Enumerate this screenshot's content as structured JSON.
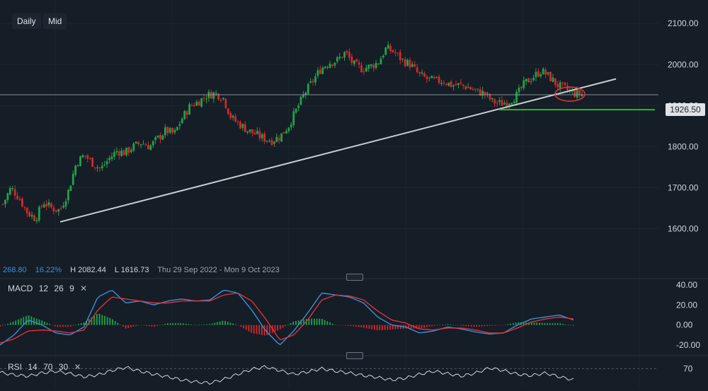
{
  "toolbar": {
    "daily_label": "Daily",
    "mid_label": "Mid"
  },
  "stats": {
    "change": "268.80",
    "change_pct": "16.22%",
    "high": "H 2082.44",
    "low": "L 1616.73",
    "range": "Thu 29 Sep 2022 - Mon 9 Oct 2023"
  },
  "price_tag": "1926.50",
  "macd_label": {
    "name": "MACD",
    "p1": "12",
    "p2": "26",
    "p3": "9",
    "close": "✕"
  },
  "rsi_label": {
    "name": "RSI",
    "p1": "14",
    "p2": "70",
    "p3": "30",
    "close": "✕"
  },
  "colors": {
    "background": "#151d26",
    "up": "#1fa34a",
    "down": "#d7262b",
    "trendline": "#c9cdd2",
    "support": "#1fbf2e",
    "macd_line": "#3a8fd8",
    "signal_line": "#e0323a",
    "highlight": "#e0323a"
  },
  "chart_data": [
    {
      "type": "candlestick",
      "title": "",
      "x_range": [
        "Thu 29 Sep 2022",
        "Mon 9 Oct 2023"
      ],
      "ylim": [
        1520,
        2140
      ],
      "yticks": [
        1600,
        1700,
        1800,
        1900,
        2000,
        2100
      ],
      "ytick_labels": [
        "1600.00",
        "1700.00",
        "1800.00",
        "1900.00",
        "2000.00",
        "2100.00"
      ],
      "last_price": 1926.5,
      "high": 2082.44,
      "low": 1616.73,
      "close_path": [
        1660,
        1700,
        1675,
        1640,
        1625,
        1665,
        1650,
        1645,
        1690,
        1760,
        1780,
        1760,
        1745,
        1770,
        1790,
        1785,
        1800,
        1810,
        1800,
        1820,
        1840,
        1830,
        1870,
        1900,
        1910,
        1925,
        1930,
        1920,
        1870,
        1855,
        1840,
        1830,
        1820,
        1815,
        1825,
        1850,
        1890,
        1930,
        1960,
        1990,
        2005,
        2010,
        2030,
        2000,
        1990,
        1995,
        2005,
        2040,
        2030,
        2010,
        2000,
        1975,
        1965,
        1960,
        1960,
        1950,
        1950,
        1945,
        1935,
        1930,
        1910,
        1905,
        1910,
        1925,
        1955,
        1970,
        1985,
        1970,
        1950,
        1940,
        1930,
        1926.5
      ],
      "trendline": {
        "x": [
          0.085,
          0.87
        ],
        "y": [
          1616.73,
          1965
        ]
      },
      "support_line": {
        "x": [
          0.705,
          0.925
        ],
        "y": [
          1890,
          1890
        ]
      },
      "highlight_ellipse": {
        "x": 0.805,
        "y": 1928
      }
    },
    {
      "type": "line",
      "title": "MACD 12 26 9",
      "ylim": [
        -25,
        45
      ],
      "yticks": [
        40,
        20,
        0,
        -20
      ],
      "ytick_labels": [
        "40.00",
        "20.00",
        "0.00",
        "-20.00"
      ],
      "series": [
        {
          "name": "MACD",
          "values": [
            -20,
            -10,
            5,
            0,
            -8,
            -10,
            -2,
            28,
            35,
            22,
            24,
            20,
            24,
            26,
            24,
            25,
            35,
            32,
            15,
            -6,
            -20,
            -6,
            12,
            32,
            30,
            28,
            22,
            8,
            0,
            -2,
            -8,
            -6,
            -2,
            -4,
            -7,
            -9,
            -8,
            0,
            6,
            8,
            10,
            5
          ]
        },
        {
          "name": "Signal",
          "values": [
            -18,
            -14,
            -6,
            -5,
            -6,
            -8,
            -5,
            15,
            28,
            26,
            24,
            22,
            22,
            24,
            24,
            24,
            30,
            32,
            24,
            6,
            -15,
            -10,
            5,
            25,
            30,
            29,
            25,
            14,
            5,
            2,
            -4,
            -5,
            -3,
            -3,
            -5,
            -8,
            -8,
            -3,
            3,
            6,
            8,
            6
          ]
        }
      ]
    },
    {
      "type": "line",
      "title": "RSI 14 70 30",
      "yticks": [
        70
      ],
      "ytick_labels": [
        "70"
      ],
      "series": [
        {
          "name": "RSI",
          "values": [
            64,
            60,
            58,
            63,
            66,
            62,
            57,
            60,
            67,
            72,
            66,
            61,
            57,
            52,
            49,
            47,
            53,
            61,
            69,
            73,
            67,
            61,
            65,
            70,
            66,
            63,
            59,
            56,
            52,
            55,
            61,
            66,
            62,
            58,
            63,
            71,
            67,
            61,
            59,
            63,
            57,
            52
          ]
        }
      ]
    }
  ]
}
